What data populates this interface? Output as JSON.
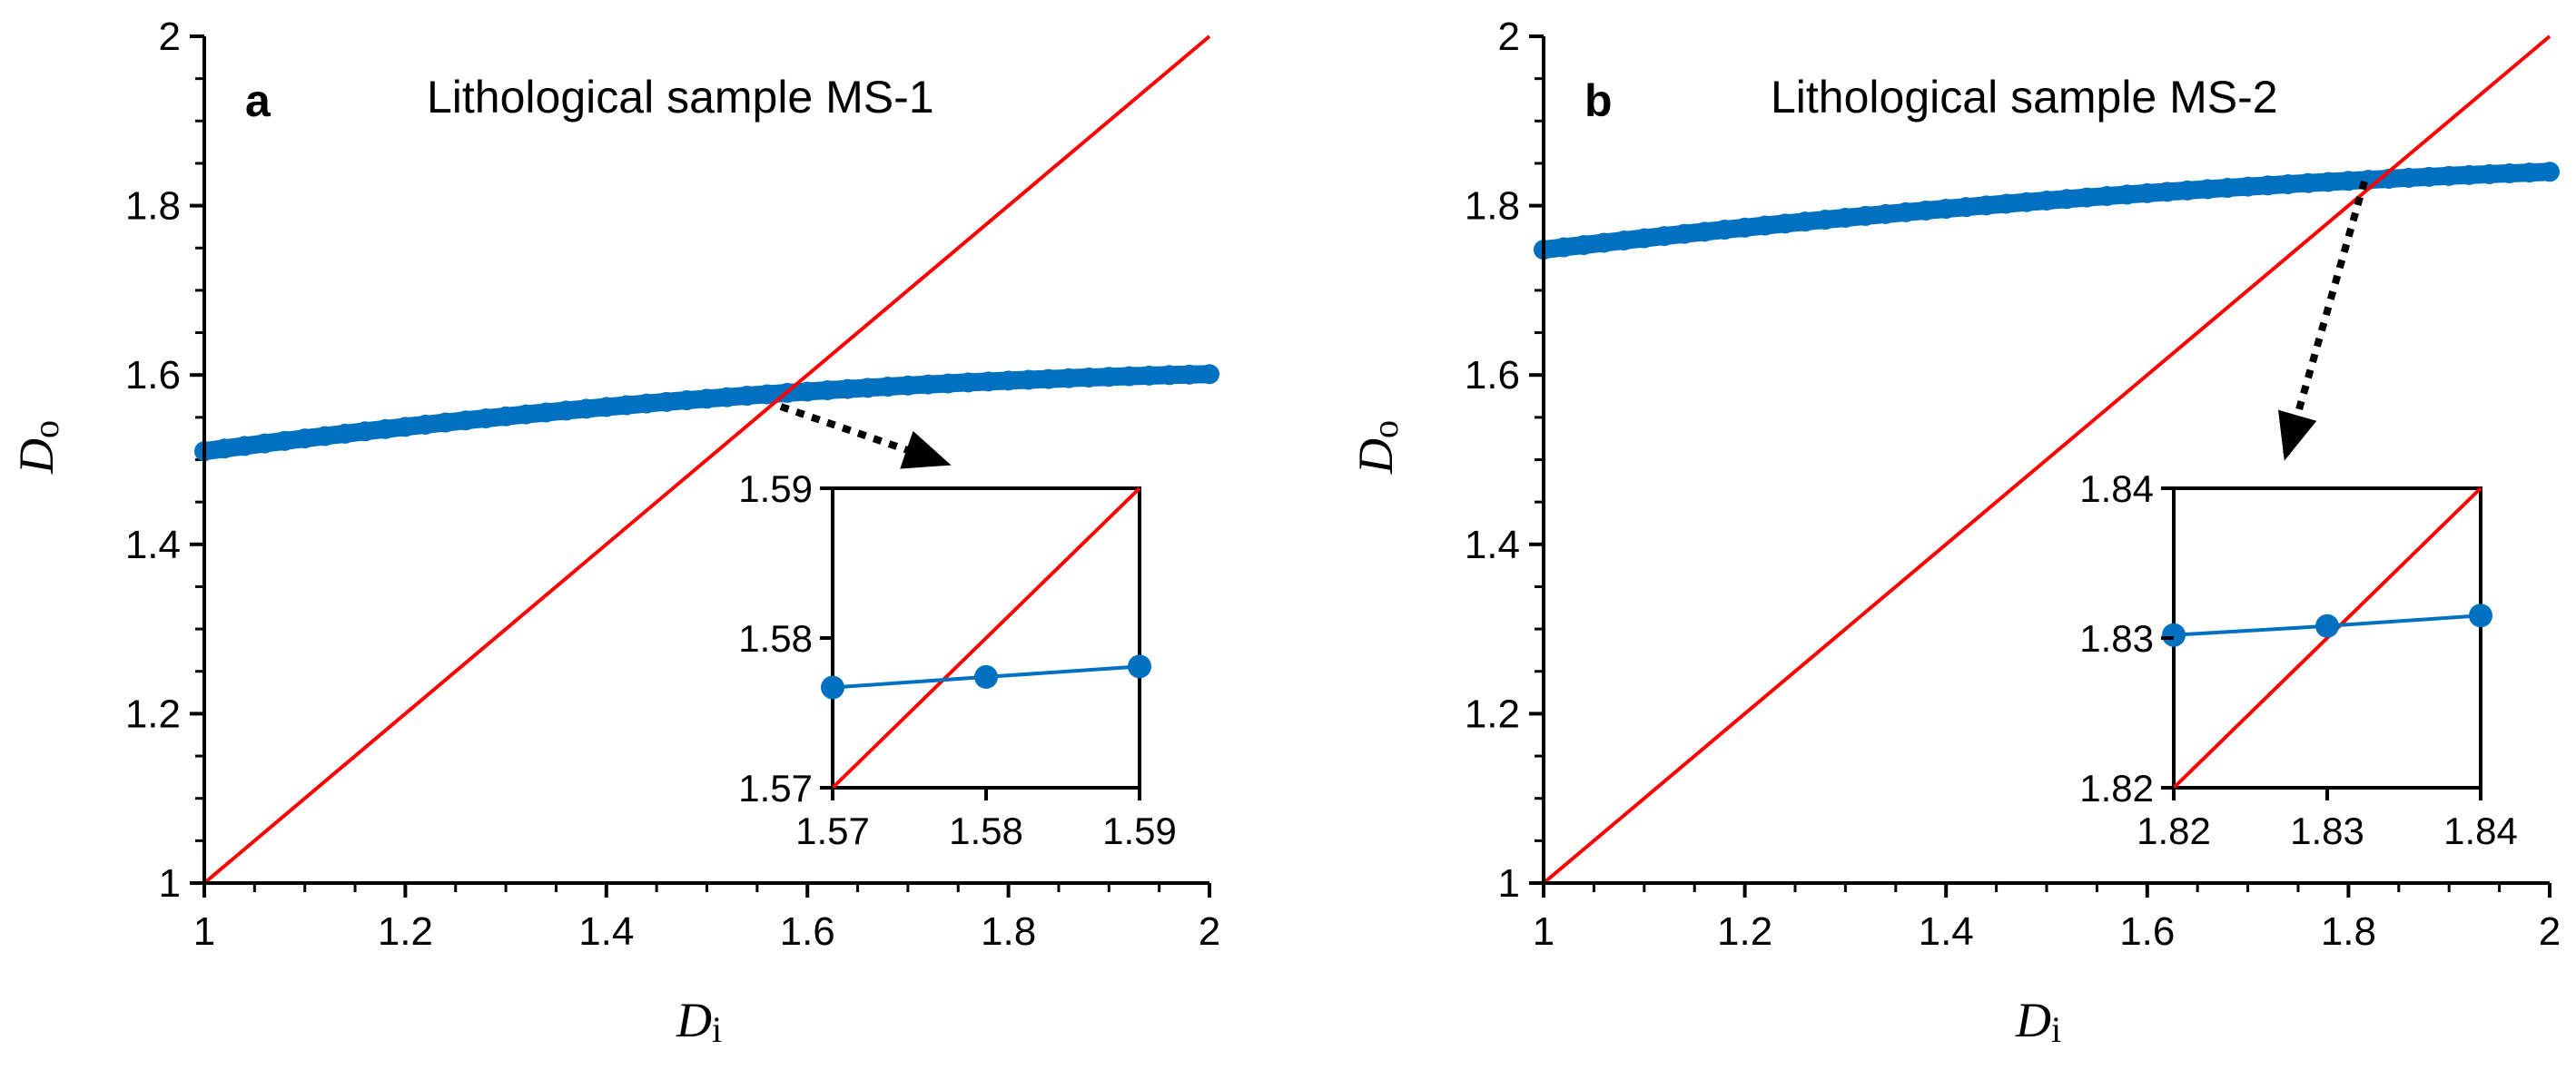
{
  "colors": {
    "series": "#0070c0",
    "identity": "#ff0000",
    "axis": "#000000",
    "arrow": "#000000"
  },
  "chart_data": [
    {
      "type": "scatter",
      "panel": "a",
      "title": "Lithological sample MS-1",
      "xlabel": {
        "main": "D",
        "sub": "i"
      },
      "ylabel": {
        "main": "D",
        "sub": "o"
      },
      "xlim": [
        1,
        2
      ],
      "ylim": [
        1,
        2
      ],
      "xticks": [
        "1",
        "1.2",
        "1.4",
        "1.6",
        "1.8",
        "2"
      ],
      "yticks": [
        "1",
        "1.2",
        "1.4",
        "1.6",
        "1.8",
        "2"
      ],
      "series": [
        {
          "name": "Do vs Di",
          "style": "thick-points",
          "x_range": [
            1,
            2
          ],
          "y_start": 1.51,
          "y_mid_point": [
            1.5,
            1.572
          ],
          "y_end": 1.601
        },
        {
          "name": "identity line y = x",
          "style": "line",
          "x": [
            1,
            2
          ],
          "y": [
            1,
            2
          ]
        }
      ],
      "intersection": [
        1.577,
        1.577
      ],
      "inset": {
        "xlim": [
          1.57,
          1.59
        ],
        "ylim": [
          1.57,
          1.59
        ],
        "xticks": [
          "1.57",
          "1.58",
          "1.59"
        ],
        "yticks": [
          "1.57",
          "1.58",
          "1.59"
        ],
        "points": {
          "x": [
            1.57,
            1.58,
            1.59
          ],
          "y": [
            1.5767,
            1.5774,
            1.5781
          ]
        },
        "identity": {
          "x": [
            1.57,
            1.59
          ],
          "y": [
            1.57,
            1.59
          ]
        }
      }
    },
    {
      "type": "scatter",
      "panel": "b",
      "title": "Lithological sample MS-2",
      "xlabel": {
        "main": "D",
        "sub": "i"
      },
      "ylabel": {
        "main": "D",
        "sub": "o"
      },
      "xlim": [
        1,
        2
      ],
      "ylim": [
        1,
        2
      ],
      "xticks": [
        "1",
        "1.2",
        "1.4",
        "1.6",
        "1.8",
        "2"
      ],
      "yticks": [
        "1",
        "1.2",
        "1.4",
        "1.6",
        "1.8",
        "2"
      ],
      "series": [
        {
          "name": "Do vs Di",
          "style": "thick-points",
          "x_range": [
            1,
            2
          ],
          "y_start": 1.748,
          "y_mid_point": [
            1.5,
            1.806
          ],
          "y_end": 1.84
        },
        {
          "name": "identity line y = x",
          "style": "line",
          "x": [
            1,
            2
          ],
          "y": [
            1,
            2
          ]
        }
      ],
      "intersection": [
        1.831,
        1.831
      ],
      "inset": {
        "xlim": [
          1.82,
          1.84
        ],
        "ylim": [
          1.82,
          1.84
        ],
        "xticks": [
          "1.82",
          "1.83",
          "1.84"
        ],
        "yticks": [
          "1.82",
          "1.83",
          "1.84"
        ],
        "points": {
          "x": [
            1.82,
            1.83,
            1.84
          ],
          "y": [
            1.8302,
            1.8308,
            1.8315
          ]
        },
        "identity": {
          "x": [
            1.82,
            1.84
          ],
          "y": [
            1.82,
            1.84
          ]
        }
      }
    }
  ]
}
